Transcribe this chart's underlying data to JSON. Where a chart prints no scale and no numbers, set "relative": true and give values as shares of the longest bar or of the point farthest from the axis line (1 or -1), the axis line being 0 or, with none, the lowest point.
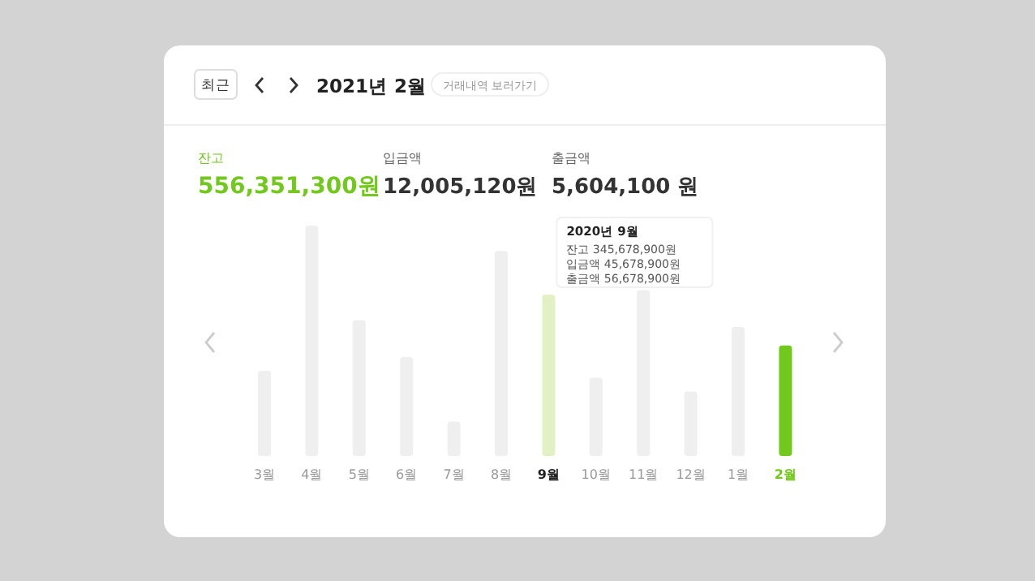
{
  "chart_data": {
    "type": "bar",
    "relative": true,
    "title": "2021년 2월",
    "categories": [
      "3월",
      "4월",
      "5월",
      "6월",
      "7월",
      "8월",
      "9월",
      "10월",
      "11월",
      "12월",
      "1월",
      "2월"
    ],
    "values": [
      0.37,
      1,
      0.59,
      0.43,
      0.15,
      0.89,
      0.7,
      0.34,
      0.72,
      0.28,
      0.56,
      0.48
    ],
    "colors": [
      "#efefef",
      "#efefef",
      "#efefef",
      "#efefef",
      "#efefef",
      "#efefef",
      "#e3f0c4",
      "#efefef",
      "#efefef",
      "#efefef",
      "#efefef",
      "#72c81c"
    ],
    "annotations": [
      "최근",
      "거래내역 보러가기",
      "잔고",
      "556,351,300원",
      "입금액",
      "12,005,120원",
      "출금액",
      "5,604,100 원",
      "2020년 9월",
      "잔고 345,678,900원",
      "입금액 45,678,900원",
      "출금액 56,678,900원"
    ]
  }
}
